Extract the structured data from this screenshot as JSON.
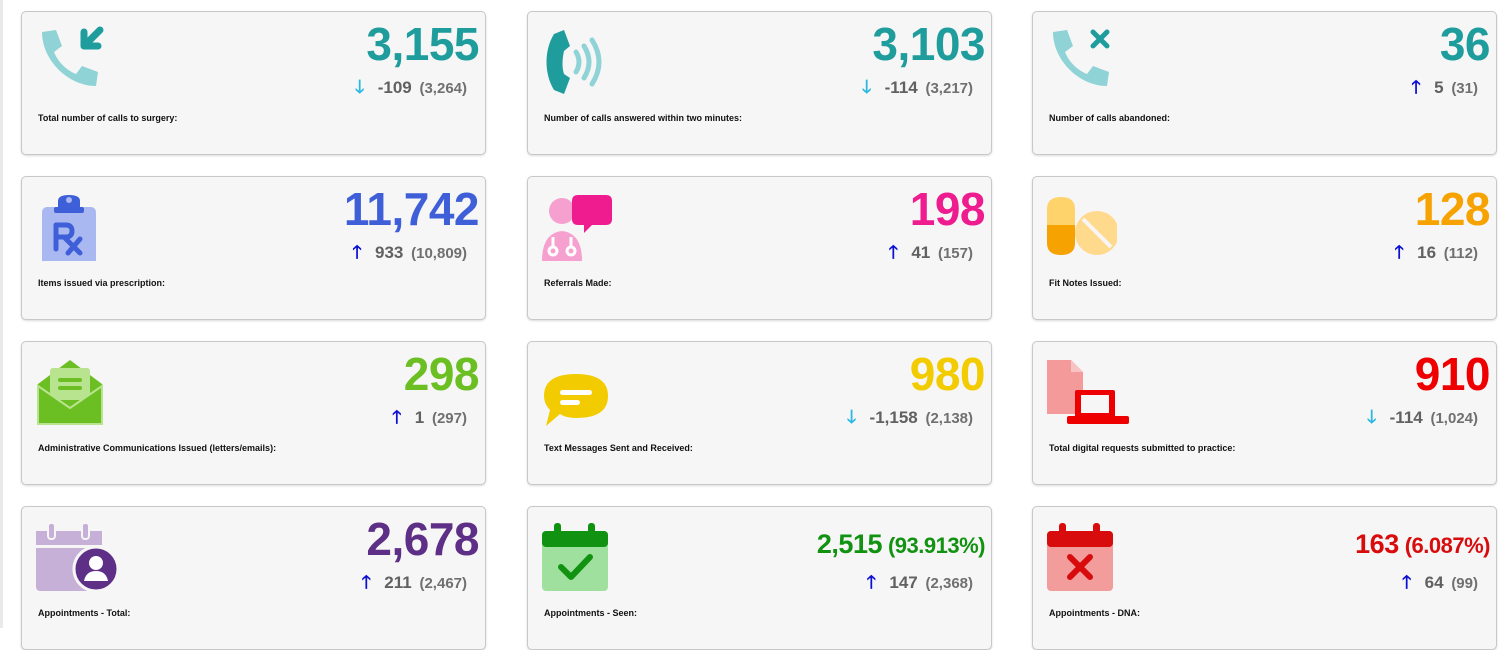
{
  "cards": [
    {
      "value": "3,155",
      "change": "-109",
      "prev": "(3,264)",
      "direction": "down",
      "label": "Total number of calls to surgery:",
      "color": "#1f9c9c",
      "icon": "phone-incoming-icon"
    },
    {
      "value": "3,103",
      "change": "-114",
      "prev": "(3,217)",
      "direction": "down",
      "label": "Number of calls answered within two minutes:",
      "color": "#1f9c9c",
      "icon": "phone-ringing-icon"
    },
    {
      "value": "36",
      "change": "5",
      "prev": "(31)",
      "direction": "up",
      "label": "Number of calls abandoned:",
      "color": "#1f9c9c",
      "icon": "phone-missed-icon"
    },
    {
      "value": "11,742",
      "change": "933",
      "prev": "(10,809)",
      "direction": "up",
      "label": "Items issued via prescription:",
      "color": "#3f5fd8",
      "icon": "prescription-clipboard-icon"
    },
    {
      "value": "198",
      "change": "41",
      "prev": "(157)",
      "direction": "up",
      "label": "Referrals Made:",
      "color": "#ee1c8e",
      "icon": "doctor-referral-icon"
    },
    {
      "value": "128",
      "change": "16",
      "prev": "(112)",
      "direction": "up",
      "label": "Fit Notes Issued:",
      "color": "#f6a200",
      "icon": "pills-icon"
    },
    {
      "value": "298",
      "change": "1",
      "prev": "(297)",
      "direction": "up",
      "label": "Administrative Communications Issued (letters/emails):",
      "color": "#6cbf22",
      "icon": "open-envelope-icon"
    },
    {
      "value": "980",
      "change": "-1,158",
      "prev": "(2,138)",
      "direction": "down",
      "label": "Text Messages Sent and Received:",
      "color": "#f2cc00",
      "icon": "chat-bubble-icon"
    },
    {
      "value": "910",
      "change": "-114",
      "prev": "(1,024)",
      "direction": "down",
      "label": "Total digital requests submitted to practice:",
      "color": "#ee0000",
      "icon": "digital-request-laptop-icon"
    },
    {
      "value": "2,678",
      "change": "211",
      "prev": "(2,467)",
      "direction": "up",
      "label": "Appointments - Total:",
      "color": "#5e2f86",
      "icon": "calendar-user-icon"
    },
    {
      "value": "2,515",
      "pct": "(93.913%)",
      "change": "147",
      "prev": "(2,368)",
      "direction": "up",
      "label": "Appointments - Seen:",
      "color": "#119211",
      "icon": "calendar-check-icon"
    },
    {
      "value": "163",
      "pct": "(6.087%)",
      "change": "64",
      "prev": "(99)",
      "direction": "up",
      "label": "Appointments - DNA:",
      "color": "#d80c0c",
      "icon": "calendar-cross-icon"
    }
  ],
  "arrows": {
    "up": "🡑",
    "down": "🡓"
  }
}
